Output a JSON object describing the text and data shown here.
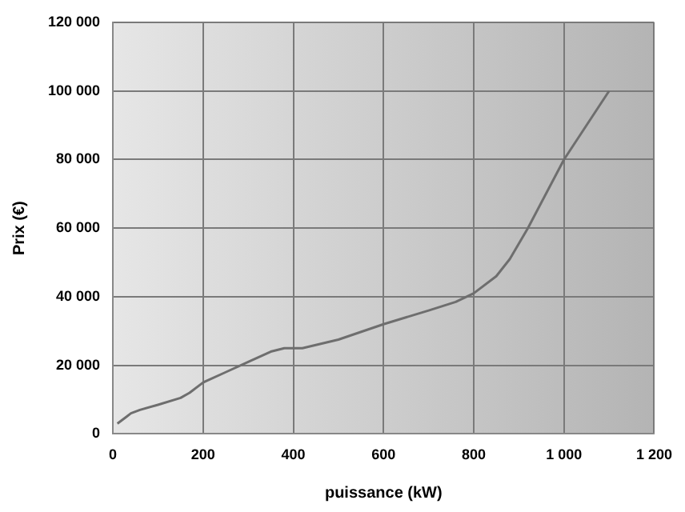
{
  "chart_data": {
    "type": "line",
    "xlabel": "puissance (kW)",
    "ylabel": "Prix (€)",
    "x": [
      10,
      30,
      40,
      60,
      100,
      150,
      170,
      200,
      250,
      300,
      350,
      380,
      420,
      500,
      600,
      700,
      760,
      800,
      850,
      880,
      920,
      1000,
      1100
    ],
    "series": [
      {
        "color": "#6e6e6e",
        "values": [
          3000,
          5000,
          6000,
          7000,
          8500,
          10500,
          12000,
          15000,
          18000,
          21000,
          24000,
          25000,
          25000,
          27500,
          32000,
          36000,
          38500,
          41000,
          46000,
          51000,
          60000,
          80000,
          100000
        ]
      }
    ],
    "xlim": [
      0,
      1200
    ],
    "xticks": [
      0,
      200,
      400,
      600,
      800,
      {
        "value": 1000,
        "label": "1 000"
      },
      {
        "value": 1200,
        "label": "1 200"
      }
    ],
    "ylim": [
      0,
      120000
    ],
    "yticks": [
      0,
      {
        "value": 20000,
        "label": "20 000"
      },
      {
        "value": 40000,
        "label": "40 000"
      },
      {
        "value": 60000,
        "label": "60 000"
      },
      {
        "value": 80000,
        "label": "80 000"
      },
      {
        "value": 100000,
        "label": "100 000"
      },
      {
        "value": 120000,
        "label": "120 000"
      }
    ],
    "grid": true,
    "legend": false,
    "marker": "none",
    "line_style": "solid"
  }
}
